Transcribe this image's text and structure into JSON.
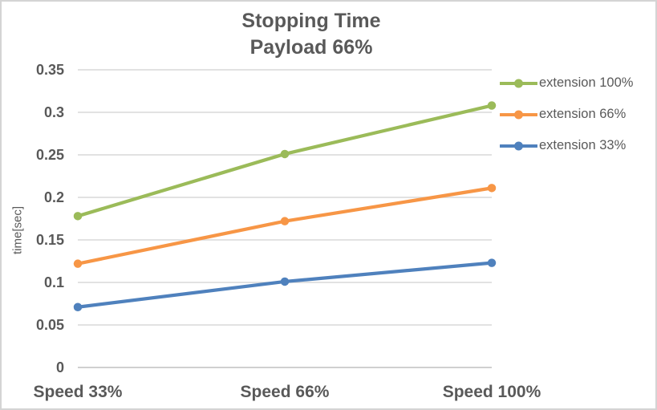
{
  "window": {
    "background": "#FFFFFF",
    "border_color": "#D4D4D4",
    "text_color": "#595959",
    "gridline_color": "#D9D9D9",
    "axis_line_color": "#D0D0D0"
  },
  "chart_data": {
    "type": "line",
    "title": "Stopping Time",
    "subtitle": "Payload 66%",
    "categories": [
      "Speed 33%",
      "Speed 66%",
      "Speed 100%"
    ],
    "series": [
      {
        "name": "extension 100%",
        "color": "#9BBB59",
        "values": [
          0.178,
          0.251,
          0.308
        ]
      },
      {
        "name": "extension 66%",
        "color": "#F79646",
        "values": [
          0.122,
          0.172,
          0.211
        ]
      },
      {
        "name": "extension 33%",
        "color": "#4F81BD",
        "values": [
          0.071,
          0.101,
          0.123
        ]
      }
    ],
    "xlabel": "",
    "ylabel": "time[sec]",
    "ylim": [
      0,
      0.35
    ],
    "yticks": [
      0,
      0.05,
      0.1,
      0.15,
      0.2,
      0.25,
      0.3,
      0.35
    ],
    "ytick_labels": [
      "0",
      "0.05",
      "0.1",
      "0.15",
      "0.2",
      "0.25",
      "0.3",
      "0.35"
    ],
    "grid": true,
    "legend_position": "right",
    "marker": "circle"
  }
}
